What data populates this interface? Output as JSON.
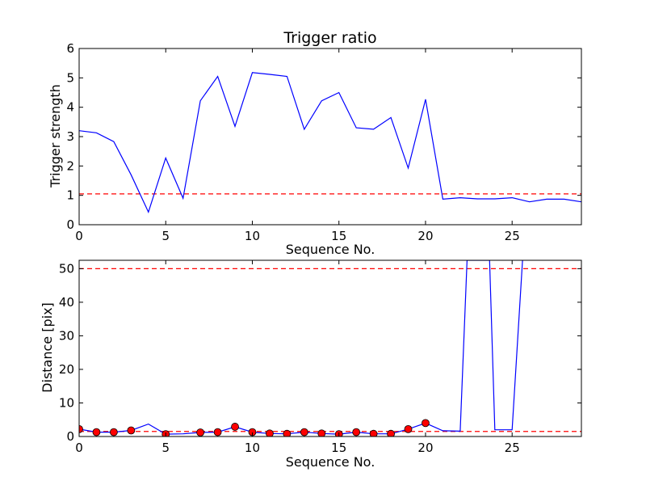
{
  "chart_data": [
    {
      "type": "line",
      "title": "Trigger ratio",
      "xlabel": "Sequence No.",
      "ylabel": "Trigger strength",
      "xlim": [
        0,
        29
      ],
      "ylim": [
        0,
        6
      ],
      "xticks": [
        0,
        5,
        10,
        15,
        20,
        25
      ],
      "yticks": [
        0,
        1,
        2,
        3,
        4,
        5,
        6
      ],
      "grid": false,
      "series": [
        {
          "color": "#0000ff",
          "style": "solid",
          "x": [
            0,
            1,
            2,
            3,
            4,
            5,
            6,
            7,
            8,
            9,
            10,
            11,
            12,
            13,
            14,
            15,
            16,
            17,
            18,
            19,
            20,
            21,
            22,
            23,
            24,
            25,
            26,
            27,
            28,
            29
          ],
          "y": [
            3.2,
            3.13,
            2.83,
            1.7,
            0.43,
            2.27,
            0.9,
            4.22,
            5.05,
            3.35,
            5.18,
            5.12,
            5.05,
            3.25,
            4.22,
            4.5,
            3.3,
            3.25,
            3.65,
            1.93,
            4.27,
            0.87,
            0.92,
            0.88,
            0.88,
            0.92,
            0.78,
            0.87,
            0.87,
            0.78
          ]
        }
      ],
      "hlines": [
        {
          "y": 1.05,
          "color": "#ff0000",
          "style": "dashed"
        }
      ]
    },
    {
      "type": "line",
      "title": "",
      "xlabel": "Sequence No.",
      "ylabel": "Distance [pix]",
      "xlim": [
        0,
        29
      ],
      "ylim": [
        0,
        52.5
      ],
      "xticks": [
        0,
        5,
        10,
        15,
        20,
        25
      ],
      "yticks": [
        0,
        10,
        20,
        30,
        40,
        50
      ],
      "grid": false,
      "series": [
        {
          "color": "#0000ff",
          "style": "solid",
          "x": [
            0,
            1,
            2,
            3,
            4,
            5,
            6,
            7,
            8,
            9,
            10,
            11,
            12,
            13,
            14,
            15,
            16,
            17,
            18,
            19,
            20,
            21,
            22,
            22.4,
            23.7,
            24,
            25,
            25.6
          ],
          "y": [
            2.2,
            1.3,
            1.3,
            1.8,
            3.7,
            0.7,
            0.8,
            1.2,
            1.3,
            2.9,
            1.3,
            0.9,
            0.8,
            1.3,
            0.9,
            0.7,
            1.3,
            0.8,
            0.8,
            2.2,
            4.0,
            1.7,
            1.6,
            52.5,
            52.5,
            2.0,
            2.0,
            52.5
          ]
        },
        {
          "color": "#ff0000",
          "style": "markers",
          "x": [
            0,
            1,
            2,
            3,
            5,
            7,
            8,
            9,
            10,
            11,
            12,
            13,
            14,
            15,
            16,
            17,
            18,
            19,
            20
          ],
          "y": [
            2.2,
            1.3,
            1.3,
            1.8,
            0.7,
            1.2,
            1.3,
            2.9,
            1.3,
            0.9,
            0.8,
            1.3,
            0.9,
            0.7,
            1.3,
            0.8,
            0.8,
            2.2,
            4.0
          ]
        }
      ],
      "hlines": [
        {
          "y": 50,
          "color": "#ff0000",
          "style": "dashed"
        },
        {
          "y": 1.5,
          "color": "#ff0000",
          "style": "dashed"
        }
      ]
    }
  ]
}
